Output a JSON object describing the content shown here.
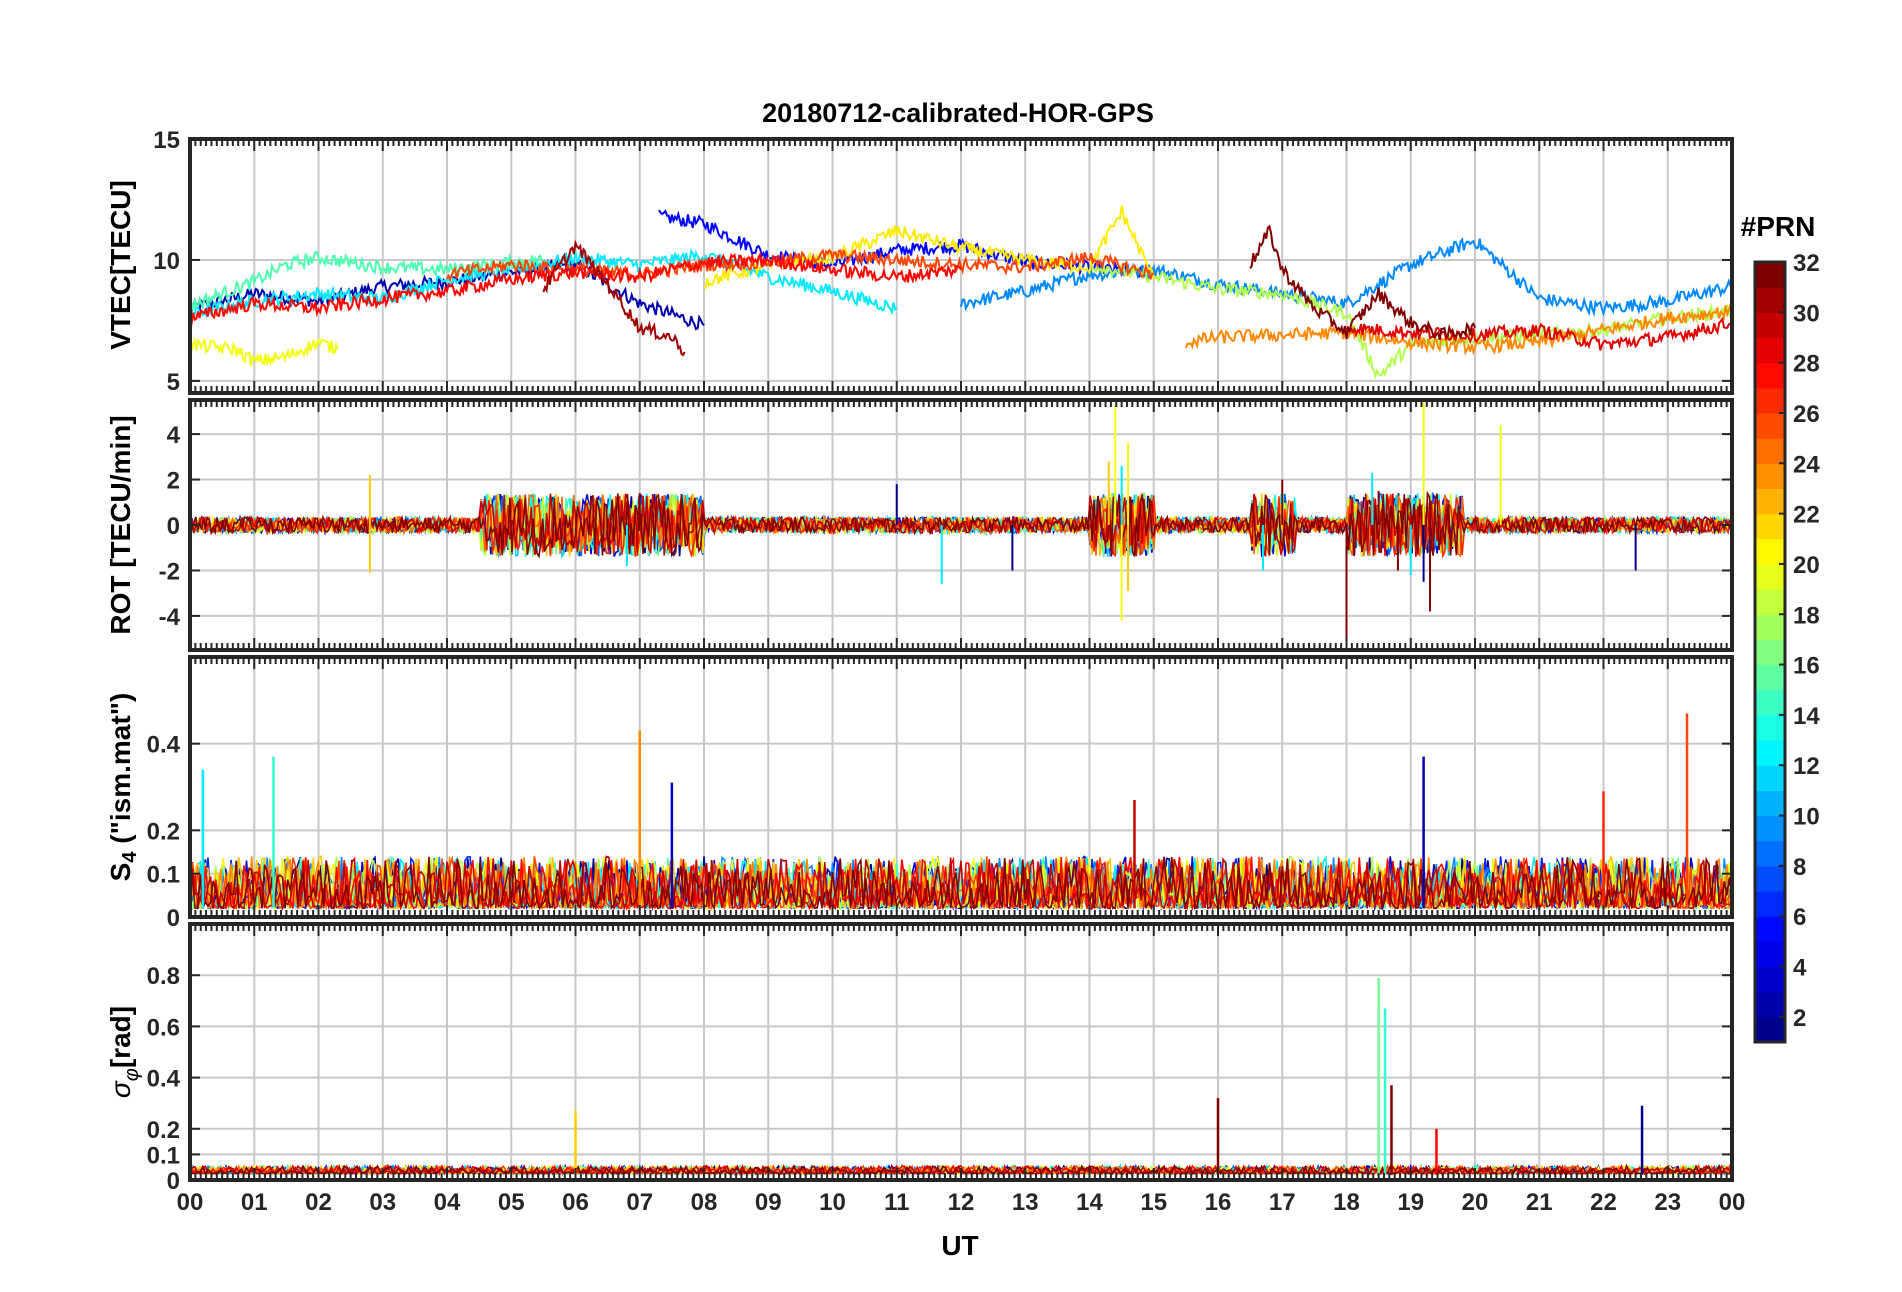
{
  "chart_data": {
    "type": "line",
    "title": "20180712-calibrated-HOR-GPS",
    "xlabel": "UT",
    "x_range": [
      0,
      24
    ],
    "x_ticks": [
      "00",
      "01",
      "02",
      "03",
      "04",
      "05",
      "06",
      "07",
      "08",
      "09",
      "10",
      "11",
      "12",
      "13",
      "14",
      "15",
      "16",
      "17",
      "18",
      "19",
      "20",
      "21",
      "22",
      "23",
      "00"
    ],
    "colorbar": {
      "label": "#PRN",
      "range": [
        1,
        32
      ],
      "ticks": [
        "2",
        "4",
        "6",
        "8",
        "10",
        "12",
        "14",
        "16",
        "18",
        "20",
        "22",
        "24",
        "26",
        "28",
        "30",
        "32"
      ],
      "colormap": "jet",
      "jet_colors": [
        "#00008f",
        "#0000ff",
        "#0080ff",
        "#00ffff",
        "#80ff80",
        "#ffff00",
        "#ff8000",
        "#ff0000",
        "#800000"
      ]
    },
    "panels": [
      {
        "id": "vtec",
        "ylabel": "VTEC[TECU]",
        "ylim": [
          4.5,
          15
        ],
        "yticks": [
          "5",
          "10",
          "15"
        ],
        "ytick_values": [
          5,
          10,
          15
        ],
        "series": [
          {
            "prn": 2,
            "x": [
              0,
              1,
              2,
              3,
              4,
              5,
              6,
              7,
              8
            ],
            "values": [
              8.0,
              8.6,
              8.3,
              8.9,
              9.1,
              9.5,
              9.8,
              8.2,
              7.3
            ]
          },
          {
            "prn": 5,
            "x": [
              7.3,
              8,
              9,
              10,
              11,
              12,
              13,
              14,
              15
            ],
            "values": [
              11.8,
              11.5,
              10.2,
              9.8,
              10.4,
              10.6,
              9.9,
              9.7,
              9.4
            ]
          },
          {
            "prn": 9,
            "x": [
              12,
              13,
              14,
              15,
              16,
              17,
              18,
              19,
              20,
              21,
              22,
              23,
              24
            ],
            "values": [
              8.2,
              8.7,
              9.4,
              9.6,
              9.0,
              8.6,
              8.2,
              9.8,
              10.8,
              8.4,
              8.0,
              8.3,
              8.9
            ]
          },
          {
            "prn": 12,
            "x": [
              0,
              1,
              2,
              3,
              4,
              5,
              6,
              7,
              8,
              9,
              10,
              11
            ],
            "values": [
              7.8,
              8.3,
              8.6,
              8.4,
              9.2,
              9.6,
              10.1,
              9.8,
              10.2,
              9.3,
              8.7,
              8.0
            ]
          },
          {
            "prn": 15,
            "x": [
              0,
              1,
              1.5,
              2,
              3,
              4,
              5,
              5.5
            ],
            "values": [
              8.1,
              9.1,
              9.8,
              10.1,
              9.7,
              9.6,
              9.9,
              10.0
            ]
          },
          {
            "prn": 18,
            "x": [
              14,
              15,
              16,
              17,
              18,
              18.5,
              19,
              20,
              21,
              22,
              23,
              24
            ],
            "values": [
              9.8,
              9.3,
              8.8,
              8.6,
              7.8,
              5.2,
              6.5,
              6.8,
              6.9,
              7.1,
              7.6,
              7.9
            ]
          },
          {
            "prn": 20,
            "x": [
              0,
              0.7,
              1,
              1.5,
              2,
              2.3
            ],
            "values": [
              6.5,
              6.3,
              5.8,
              6.0,
              6.6,
              6.3
            ]
          },
          {
            "prn": 21,
            "x": [
              8,
              9,
              10,
              11,
              12,
              13,
              14,
              14.5,
              15
            ],
            "values": [
              9.1,
              9.8,
              10.1,
              11.2,
              10.5,
              10.0,
              9.7,
              12.0,
              9.2
            ]
          },
          {
            "prn": 24,
            "x": [
              15.5,
              16,
              17,
              18,
              19,
              20,
              21,
              22,
              23,
              24
            ],
            "values": [
              6.6,
              6.8,
              6.9,
              7.0,
              6.6,
              6.4,
              6.6,
              7.1,
              7.6,
              7.9
            ]
          },
          {
            "prn": 26,
            "x": [
              4,
              5,
              6,
              7,
              8,
              9,
              10,
              11,
              12,
              13,
              14,
              15
            ],
            "values": [
              9.4,
              9.8,
              9.6,
              9.4,
              9.8,
              9.9,
              10.2,
              10.0,
              9.8,
              9.7,
              10.1,
              9.4
            ]
          },
          {
            "prn": 28,
            "x": [
              0,
              1,
              2,
              3,
              4,
              5,
              6,
              7,
              8,
              9,
              10,
              11,
              12
            ],
            "values": [
              7.6,
              8.2,
              8.0,
              8.4,
              8.7,
              9.2,
              9.5,
              9.3,
              9.9,
              10.0,
              9.6,
              9.3,
              9.6
            ]
          },
          {
            "prn": 29,
            "x": [
              18,
              19,
              20,
              21,
              22,
              23,
              24
            ],
            "values": [
              7.2,
              7.0,
              6.9,
              7.1,
              6.5,
              6.8,
              7.4
            ]
          },
          {
            "prn": 31,
            "x": [
              5.5,
              6,
              6.5,
              7,
              7.5,
              7.7
            ],
            "values": [
              8.8,
              10.6,
              9.0,
              7.2,
              6.8,
              6.2
            ]
          },
          {
            "prn": 32,
            "x": [
              16.5,
              16.8,
              17,
              17.5,
              18,
              18.5,
              19,
              19.5,
              20
            ],
            "values": [
              9.8,
              11.2,
              9.6,
              8.0,
              7.0,
              8.6,
              7.4,
              6.9,
              7.2
            ]
          }
        ]
      },
      {
        "id": "rot",
        "ylabel": "ROT [TECU/min]",
        "ylim": [
          -5.5,
          5.5
        ],
        "yticks": [
          "-4",
          "-2",
          "0",
          "2",
          "4"
        ],
        "ytick_values": [
          -4,
          -2,
          0,
          2,
          4
        ],
        "series": [
          {
            "prn": 1,
            "x": [
              11,
              12.8,
              18.0,
              19.2,
              22.5,
              24
            ],
            "values": [
              1.8,
              -2.0,
              -1.8,
              -2.5,
              -2.0,
              0.5
            ],
            "kind": "spikes"
          },
          {
            "prn": 12,
            "x": [
              6.8,
              11.7,
              14.5,
              16.7,
              18.4,
              19.0
            ],
            "values": [
              -1.8,
              -2.6,
              2.6,
              -2.0,
              2.3,
              -2.2
            ],
            "kind": "spikes"
          },
          {
            "prn": 20,
            "x": [
              14.4,
              14.5,
              14.6,
              19.2,
              20.4
            ],
            "values": [
              5.3,
              -4.2,
              3.6,
              5.4,
              4.4
            ],
            "kind": "spikes"
          },
          {
            "prn": 22,
            "x": [
              2.8,
              2.8,
              14.3,
              14.6
            ],
            "values": [
              2.2,
              -2.1,
              2.8,
              -2.9
            ],
            "kind": "spikes"
          },
          {
            "prn": 32,
            "x": [
              7.0,
              18.0,
              18.5,
              18.8,
              19.3,
              17.0
            ],
            "values": [
              1.4,
              -5.5,
              1.5,
              -2.0,
              -3.8,
              2.0
            ],
            "kind": "spikes"
          }
        ]
      },
      {
        "id": "s4",
        "ylabel": "S4 (\"ism.mat\")",
        "ylim": [
          0,
          0.6
        ],
        "yticks": [
          "0",
          "0.1",
          "0.2",
          "0.4"
        ],
        "ytick_values": [
          0,
          0.1,
          0.2,
          0.4
        ],
        "peaks": [
          {
            "prn": 12,
            "x": 0.2,
            "value": 0.34
          },
          {
            "prn": 14,
            "x": 1.3,
            "value": 0.37
          },
          {
            "prn": 24,
            "x": 7.0,
            "value": 0.43
          },
          {
            "prn": 3,
            "x": 7.5,
            "value": 0.31
          },
          {
            "prn": 30,
            "x": 14.7,
            "value": 0.27
          },
          {
            "prn": 2,
            "x": 19.2,
            "value": 0.37
          },
          {
            "prn": 26,
            "x": 23.3,
            "value": 0.47
          },
          {
            "prn": 27,
            "x": 22.0,
            "value": 0.29
          }
        ]
      },
      {
        "id": "sigma",
        "ylabel": "σφ[rad]",
        "ylim": [
          0,
          1.0
        ],
        "yticks": [
          "0",
          "0.1",
          "0.2",
          "0.4",
          "0.6",
          "0.8"
        ],
        "ytick_values": [
          0,
          0.1,
          0.2,
          0.4,
          0.6,
          0.8
        ],
        "peaks": [
          {
            "prn": 22,
            "x": 6.0,
            "value": 0.27
          },
          {
            "prn": 32,
            "x": 16.0,
            "value": 0.32
          },
          {
            "prn": 16,
            "x": 18.5,
            "value": 0.79
          },
          {
            "prn": 14,
            "x": 18.6,
            "value": 0.67
          },
          {
            "prn": 32,
            "x": 18.7,
            "value": 0.37
          },
          {
            "prn": 1,
            "x": 22.6,
            "value": 0.29
          },
          {
            "prn": 28,
            "x": 19.4,
            "value": 0.2
          }
        ]
      }
    ]
  }
}
